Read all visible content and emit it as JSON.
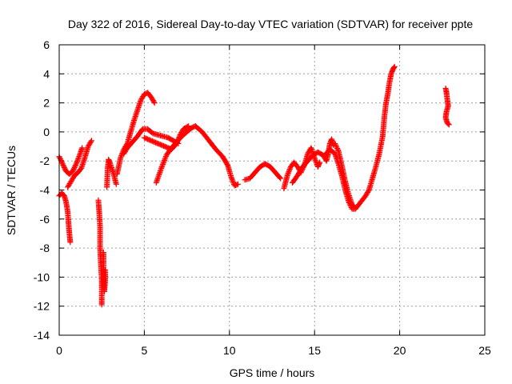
{
  "chart_data": {
    "type": "scatter",
    "title": "Day 322 of 2016, Sidereal Day-to-day VTEC variation (SDTVAR) for receiver ppte",
    "xlabel": "GPS time / hours",
    "ylabel": "SDTVAR / TECUs",
    "xlim": [
      0,
      25
    ],
    "ylim": [
      -14,
      6
    ],
    "xticks": [
      0,
      5,
      10,
      15,
      20,
      25
    ],
    "yticks": [
      -14,
      -12,
      -10,
      -8,
      -6,
      -4,
      -2,
      0,
      2,
      4,
      6
    ],
    "grid": true,
    "marker": "+",
    "series": [
      {
        "name": "SDTVAR",
        "color": "#ff0000",
        "tracks": [
          [
            [
              0.0,
              -1.7
            ],
            [
              0.2,
              -2.2
            ],
            [
              0.4,
              -2.7
            ],
            [
              0.6,
              -2.9
            ],
            [
              0.8,
              -2.7
            ],
            [
              1.0,
              -2.2
            ],
            [
              1.2,
              -1.6
            ],
            [
              1.35,
              -1.1
            ]
          ],
          [
            [
              0.0,
              -4.4
            ],
            [
              0.15,
              -4.2
            ],
            [
              0.3,
              -4.4
            ],
            [
              0.4,
              -4.8
            ],
            [
              0.5,
              -5.5
            ],
            [
              0.55,
              -6.3
            ],
            [
              0.6,
              -7.0
            ],
            [
              0.65,
              -7.6
            ]
          ],
          [
            [
              0.5,
              -3.8
            ],
            [
              0.7,
              -3.4
            ],
            [
              0.9,
              -3.0
            ],
            [
              1.1,
              -2.8
            ],
            [
              1.3,
              -2.5
            ],
            [
              1.5,
              -1.8
            ],
            [
              1.7,
              -1.0
            ],
            [
              1.9,
              -0.6
            ]
          ],
          [
            [
              2.3,
              -4.7
            ],
            [
              2.35,
              -5.5
            ],
            [
              2.4,
              -6.5
            ],
            [
              2.4,
              -8.0
            ],
            [
              2.45,
              -9.2
            ],
            [
              2.5,
              -10.2
            ],
            [
              2.5,
              -11.0
            ],
            [
              2.5,
              -11.9
            ]
          ],
          [
            [
              2.6,
              -8.3
            ],
            [
              2.6,
              -9.0
            ],
            [
              2.6,
              -10.0
            ],
            [
              2.62,
              -10.6
            ],
            [
              2.65,
              -11.0
            ],
            [
              2.7,
              -10.3
            ],
            [
              2.7,
              -9.5
            ]
          ],
          [
            [
              2.8,
              -3.8
            ],
            [
              2.85,
              -2.5
            ],
            [
              2.9,
              -1.9
            ],
            [
              3.0,
              -2.2
            ],
            [
              3.2,
              -2.9
            ],
            [
              3.35,
              -3.6
            ]
          ],
          [
            [
              3.4,
              -2.9
            ],
            [
              3.6,
              -1.8
            ],
            [
              3.8,
              -1.2
            ],
            [
              4.0,
              -0.8
            ],
            [
              4.2,
              0.0
            ],
            [
              4.4,
              0.8
            ],
            [
              4.6,
              1.5
            ],
            [
              4.8,
              2.2
            ],
            [
              5.0,
              2.6
            ],
            [
              5.2,
              2.7
            ],
            [
              5.4,
              2.4
            ],
            [
              5.6,
              2.0
            ]
          ],
          [
            [
              3.8,
              -1.5
            ],
            [
              4.0,
              -1.1
            ],
            [
              4.3,
              -0.7
            ],
            [
              4.6,
              -0.3
            ],
            [
              4.9,
              0.2
            ],
            [
              5.2,
              0.2
            ],
            [
              5.5,
              -0.1
            ],
            [
              5.8,
              -0.2
            ],
            [
              6.1,
              -0.3
            ],
            [
              6.4,
              -0.4
            ],
            [
              6.7,
              -0.6
            ],
            [
              7.0,
              -0.8
            ]
          ],
          [
            [
              5.7,
              -3.5
            ],
            [
              6.0,
              -2.5
            ],
            [
              6.3,
              -1.6
            ],
            [
              6.6,
              -1.1
            ],
            [
              6.9,
              -0.7
            ],
            [
              7.2,
              -0.3
            ],
            [
              7.5,
              0.0
            ],
            [
              7.8,
              0.3
            ],
            [
              8.0,
              0.4
            ]
          ],
          [
            [
              5.0,
              -0.4
            ],
            [
              5.4,
              -0.6
            ],
            [
              5.8,
              -0.8
            ],
            [
              6.2,
              -1.0
            ],
            [
              6.6,
              -1.2
            ],
            [
              6.9,
              -0.8
            ],
            [
              7.1,
              -0.2
            ],
            [
              7.3,
              0.2
            ],
            [
              7.6,
              0.4
            ]
          ],
          [
            [
              8.0,
              0.4
            ],
            [
              8.4,
              0.0
            ],
            [
              8.8,
              -0.6
            ],
            [
              9.2,
              -1.2
            ],
            [
              9.6,
              -1.7
            ],
            [
              9.9,
              -2.3
            ],
            [
              10.1,
              -3.1
            ],
            [
              10.3,
              -3.7
            ],
            [
              10.5,
              -3.6
            ]
          ],
          [
            [
              10.9,
              -3.3
            ],
            [
              11.2,
              -3.2
            ],
            [
              11.5,
              -2.8
            ],
            [
              11.8,
              -2.4
            ],
            [
              12.1,
              -2.2
            ],
            [
              12.4,
              -2.4
            ],
            [
              12.7,
              -2.8
            ],
            [
              13.0,
              -3.2
            ]
          ],
          [
            [
              13.2,
              -3.9
            ],
            [
              13.4,
              -3.0
            ],
            [
              13.6,
              -2.4
            ],
            [
              13.8,
              -2.1
            ],
            [
              14.0,
              -2.4
            ],
            [
              14.2,
              -2.8
            ],
            [
              14.4,
              -2.3
            ],
            [
              14.6,
              -1.5
            ],
            [
              14.8,
              -1.1
            ],
            [
              15.0,
              -1.8
            ],
            [
              15.2,
              -2.4
            ],
            [
              15.3,
              -2.1
            ]
          ],
          [
            [
              13.7,
              -3.5
            ],
            [
              14.0,
              -3.0
            ],
            [
              14.3,
              -2.4
            ],
            [
              14.6,
              -2.0
            ],
            [
              14.9,
              -1.6
            ],
            [
              15.2,
              -1.4
            ],
            [
              15.5,
              -1.6
            ],
            [
              15.7,
              -2.0
            ],
            [
              15.8,
              -1.5
            ],
            [
              15.9,
              -0.8
            ],
            [
              16.0,
              -0.5
            ],
            [
              16.1,
              -0.9
            ]
          ],
          [
            [
              15.6,
              -1.6
            ],
            [
              15.9,
              -1.2
            ],
            [
              16.2,
              -1.5
            ],
            [
              16.4,
              -2.2
            ],
            [
              16.6,
              -3.0
            ],
            [
              16.8,
              -4.0
            ],
            [
              17.0,
              -4.8
            ],
            [
              17.2,
              -5.3
            ],
            [
              17.4,
              -5.3
            ],
            [
              17.6,
              -5.0
            ],
            [
              17.8,
              -4.7
            ],
            [
              18.0,
              -4.4
            ],
            [
              18.2,
              -4.0
            ],
            [
              18.4,
              -3.2
            ],
            [
              18.6,
              -2.4
            ],
            [
              18.8,
              -1.5
            ],
            [
              19.0,
              -0.3
            ],
            [
              19.1,
              1.0
            ],
            [
              19.2,
              2.0
            ],
            [
              19.3,
              2.6
            ],
            [
              19.4,
              3.4
            ],
            [
              19.5,
              4.0
            ],
            [
              19.6,
              4.3
            ],
            [
              19.7,
              4.5
            ]
          ],
          [
            [
              16.2,
              -0.8
            ],
            [
              16.4,
              -1.3
            ],
            [
              16.6,
              -2.3
            ],
            [
              16.8,
              -3.4
            ],
            [
              17.0,
              -4.3
            ],
            [
              17.2,
              -5.0
            ],
            [
              17.3,
              -5.1
            ]
          ],
          [
            [
              22.7,
              3.0
            ],
            [
              22.75,
              2.7
            ],
            [
              22.8,
              2.2
            ],
            [
              22.85,
              1.8
            ],
            [
              22.75,
              1.4
            ],
            [
              22.7,
              1.0
            ],
            [
              22.8,
              0.6
            ],
            [
              22.9,
              0.5
            ]
          ]
        ]
      }
    ]
  }
}
